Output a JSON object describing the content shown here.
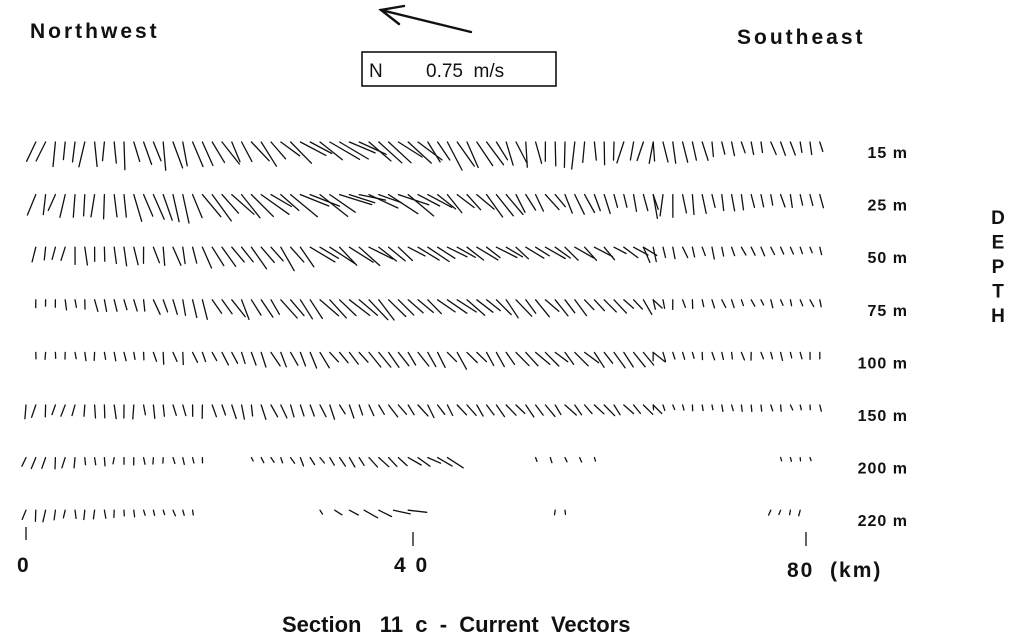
{
  "header": {
    "left_direction": "Northwest",
    "right_direction": "Southeast"
  },
  "scale_box": {
    "north_label": "N",
    "value_label": "0.75  m/s"
  },
  "depth_axis": {
    "title": "DEPTH"
  },
  "x_axis": {
    "tick_labels": [
      "0",
      "4 0",
      "80  (km)"
    ]
  },
  "caption": "Section   11  c  -  Current  Vectors",
  "colors": {
    "ink": "#111111",
    "background": "#ffffff"
  },
  "chart_data": {
    "type": "vector_section",
    "title": "Section   11  c  -  Current  Vectors",
    "xlabel": "(km)",
    "x_ticks": [
      0,
      40,
      80
    ],
    "xlim": [
      0,
      82
    ],
    "scale_reference": {
      "label": "0.75  m/s",
      "speed": 0.75,
      "units": "m/s",
      "direction_deg": 110
    },
    "depths": [
      "15 m",
      "25 m",
      "50 m",
      "75 m",
      "100 m",
      "150 m",
      "200 m",
      "220 m"
    ],
    "rows": [
      {
        "depth": "15 m",
        "segments": [
          {
            "x0": 1,
            "x1": 64,
            "step": 1.0,
            "dir": [
              200,
              115,
              200
            ],
            "spd": [
              0.45,
              0.65,
              0.45
            ]
          },
          {
            "x0": 64,
            "x1": 81,
            "step": 1.0,
            "dir": [
              175,
              170,
              160
            ],
            "spd": [
              0.5,
              0.3,
              0.25
            ]
          }
        ]
      },
      {
        "depth": "25 m",
        "segments": [
          {
            "x0": 1,
            "x1": 64,
            "step": 1.0,
            "dir": [
              200,
              110,
              170
            ],
            "spd": [
              0.45,
              0.7,
              0.3
            ]
          },
          {
            "x0": 64,
            "x1": 81,
            "step": 1.0,
            "dir": [
              180,
              170,
              160
            ],
            "spd": [
              0.45,
              0.3,
              0.25
            ]
          }
        ]
      },
      {
        "depth": "50 m",
        "segments": [
          {
            "x0": 1,
            "x1": 63,
            "step": 1.0,
            "dir": [
              195,
              125,
              130
            ],
            "spd": [
              0.3,
              0.55,
              0.35
            ]
          },
          {
            "x0": 63,
            "x1": 81,
            "step": 1.0,
            "dir": [
              165,
              160,
              160
            ],
            "spd": [
              0.3,
              0.2,
              0.15
            ]
          }
        ]
      },
      {
        "depth": "75 m",
        "segments": [
          {
            "x0": 1,
            "x1": 64,
            "step": 1.0,
            "dir": [
              185,
              130,
              140
            ],
            "spd": [
              0.15,
              0.55,
              0.3
            ]
          },
          {
            "x0": 64,
            "x1": 81,
            "step": 1.0,
            "dir": [
              175,
              160,
              160
            ],
            "spd": [
              0.2,
              0.15,
              0.15
            ]
          }
        ]
      },
      {
        "depth": "100 m",
        "segments": [
          {
            "x0": 1,
            "x1": 64,
            "step": 1.0,
            "dir": [
              185,
              145,
              135
            ],
            "spd": [
              0.12,
              0.35,
              0.35
            ]
          },
          {
            "x0": 64,
            "x1": 81,
            "step": 1.0,
            "dir": [
              175,
              170,
              170
            ],
            "spd": [
              0.18,
              0.15,
              0.15
            ]
          }
        ]
      },
      {
        "depth": "150 m",
        "segments": [
          {
            "x0": 0,
            "x1": 64,
            "step": 1.0,
            "dir": [
              195,
              150,
              140
            ],
            "spd": [
              0.25,
              0.28,
              0.28
            ]
          },
          {
            "x0": 64,
            "x1": 81,
            "step": 1.0,
            "dir": [
              170,
              165,
              165
            ],
            "spd": [
              0.12,
              0.12,
              0.12
            ]
          }
        ]
      },
      {
        "depth": "200 m",
        "segments": [
          {
            "x0": 0,
            "x1": 18,
            "step": 1.0,
            "dir": [
              195,
              180,
              170
            ],
            "spd": [
              0.25,
              0.15,
              0.12
            ]
          },
          {
            "x0": 23,
            "x1": 43,
            "step": 1.0,
            "dir": [
              160,
              140,
              120
            ],
            "spd": [
              0.1,
              0.22,
              0.38
            ]
          },
          {
            "x0": 52,
            "x1": 59,
            "step": 1.5,
            "dir": [
              165,
              155,
              150
            ],
            "spd": [
              0.1,
              0.1,
              0.1
            ]
          },
          {
            "x0": 77,
            "x1": 80,
            "step": 1.0,
            "dir": [
              170,
              165,
              165
            ],
            "spd": [
              0.08,
              0.08,
              0.08
            ]
          }
        ]
      },
      {
        "depth": "220 m",
        "segments": [
          {
            "x0": 0,
            "x1": 17,
            "step": 1.0,
            "dir": [
              195,
              175,
              165
            ],
            "spd": [
              0.25,
              0.15,
              0.1
            ]
          },
          {
            "x0": 30,
            "x1": 40,
            "step": 1.5,
            "dir": [
              140,
              110,
              100
            ],
            "spd": [
              0.12,
              0.3,
              0.35
            ]
          },
          {
            "x0": 54,
            "x1": 55,
            "step": 1.0,
            "dir": [
              180,
              180,
              180
            ],
            "spd": [
              0.1,
              0.1,
              0.1
            ]
          },
          {
            "x0": 76,
            "x1": 79,
            "step": 1.0,
            "dir": [
              200,
              200,
              200
            ],
            "spd": [
              0.12,
              0.12,
              0.12
            ]
          }
        ]
      }
    ]
  }
}
